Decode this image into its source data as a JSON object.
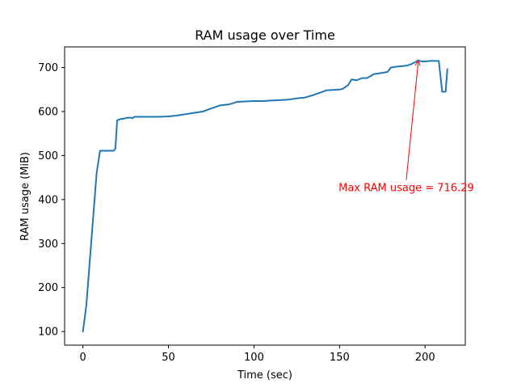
{
  "chart_data": {
    "type": "line",
    "title": "RAM usage over Time",
    "xlabel": "Time (sec)",
    "ylabel": "RAM usage (MiB)",
    "xlim": [
      -10.7,
      223.5
    ],
    "ylim": [
      69,
      747
    ],
    "xticks": [
      0,
      50,
      100,
      150,
      200
    ],
    "yticks": [
      100,
      200,
      300,
      400,
      500,
      600,
      700
    ],
    "grid": false,
    "series": [
      {
        "color": "#1f77b4",
        "x": [
          0,
          2,
          4,
          6,
          8,
          10,
          12,
          14,
          16,
          18,
          19,
          20,
          22,
          24,
          26,
          28,
          29,
          30,
          35,
          40,
          45,
          50,
          55,
          60,
          65,
          70,
          75,
          80,
          85,
          87,
          90,
          95,
          100,
          105,
          110,
          115,
          120,
          125,
          130,
          135,
          140,
          142,
          145,
          150,
          152,
          155,
          157,
          160,
          163,
          166,
          170,
          175,
          178,
          180,
          183,
          186,
          190,
          192,
          195,
          196,
          198,
          200,
          203,
          206,
          208,
          210,
          212,
          213
        ],
        "y": [
          100,
          160,
          260,
          360,
          460,
          511,
          511,
          511,
          511,
          511,
          516,
          580,
          583,
          584,
          586,
          586,
          585,
          588,
          588,
          588,
          588,
          589,
          591,
          594,
          597,
          600,
          607,
          614,
          616,
          618,
          622,
          623,
          624,
          624,
          625,
          626,
          627,
          630,
          632,
          638,
          645,
          648,
          649,
          650,
          652,
          660,
          673,
          671,
          676,
          676,
          685,
          688,
          690,
          700,
          702,
          703,
          705,
          708,
          714,
          716,
          714,
          714,
          715,
          715,
          715,
          645,
          645,
          696
        ]
      }
    ],
    "annotation": {
      "text": "Max RAM usage = 716.29",
      "point": [
        196,
        716.29
      ],
      "text_anchor_point": [
        189,
        419
      ],
      "color": "#ff0000"
    }
  }
}
